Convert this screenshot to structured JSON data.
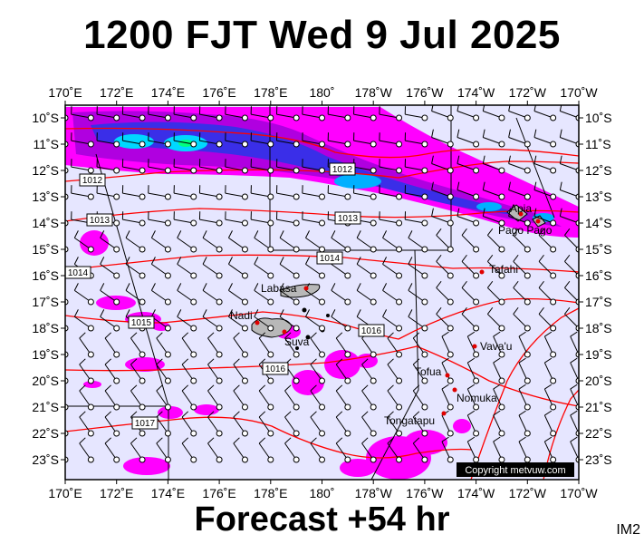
{
  "title": "1200 FJT Wed 9 Jul 2025",
  "footer": "Forecast +54 hr",
  "image_code": "IM2",
  "copyright": "Copyright metvuw.com",
  "lon_labels": [
    "170˚E",
    "172˚E",
    "174˚E",
    "176˚E",
    "178˚E",
    "180˚",
    "178˚W",
    "176˚W",
    "174˚W",
    "172˚W",
    "170˚W"
  ],
  "lat_labels": [
    "10˚S",
    "11˚S",
    "12˚S",
    "13˚S",
    "14˚S",
    "15˚S",
    "16˚S",
    "17˚S",
    "18˚S",
    "19˚S",
    "20˚S",
    "21˚S",
    "22˚S",
    "23˚S"
  ],
  "isobars": [
    {
      "label": "1012"
    },
    {
      "label": "1012"
    },
    {
      "label": "1013"
    },
    {
      "label": "1013"
    },
    {
      "label": "1014"
    },
    {
      "label": "1014"
    },
    {
      "label": "1015"
    },
    {
      "label": "1016"
    },
    {
      "label": "1016"
    },
    {
      "label": "1017"
    }
  ],
  "places": [
    {
      "name": "Labasa"
    },
    {
      "name": "Nadi"
    },
    {
      "name": "Suva"
    },
    {
      "name": "Tafahi"
    },
    {
      "name": "Vava'u"
    },
    {
      "name": "Tofua"
    },
    {
      "name": "Nomuka"
    },
    {
      "name": "Tongatapu"
    },
    {
      "name": "Apia"
    },
    {
      "name": "Pago Pago"
    }
  ],
  "colors": {
    "background": "#e6e6ff",
    "rain_light": "#ff00ff",
    "rain_med": "#2e2ee0",
    "rain_heavy": "#00d8ff",
    "isobar": "#ff0000",
    "land": "#b8b8b8"
  }
}
